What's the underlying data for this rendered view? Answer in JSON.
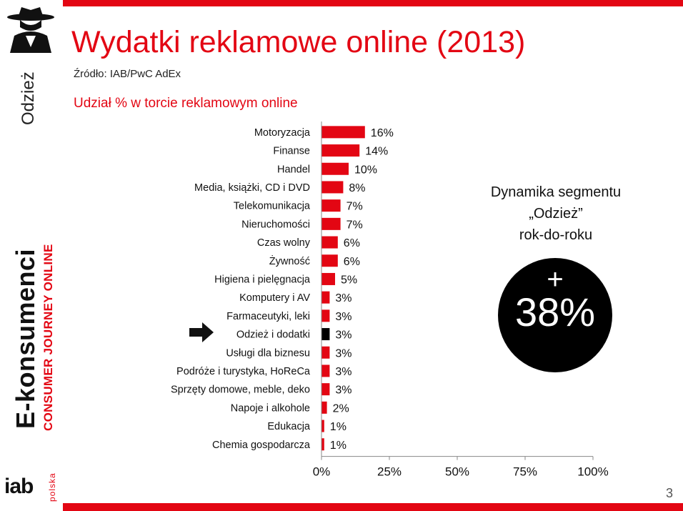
{
  "slide": {
    "title": "Wydatki reklamowe online (2013)",
    "source": "Źródło: IAB/PwC AdEx",
    "subtitle": "Udział % w torcie reklamowym online",
    "page_number": "3"
  },
  "sidebar": {
    "section": "Odzież",
    "brand": "E-konsumenci",
    "subbrand": "CONSUMER JOURNEY ONLINE",
    "logo": "iab",
    "logo_sub": "polska",
    "icon": "spy-icon"
  },
  "callout": {
    "line1": "Dynamika segmentu",
    "line2": "„Odzież”",
    "line3": "rok-do-roku",
    "sign": "+",
    "value": "38%"
  },
  "colors": {
    "accent": "#e30613",
    "highlight": "#000000"
  },
  "chart_data": {
    "type": "bar",
    "orientation": "horizontal",
    "categories": [
      "Motoryzacja",
      "Finanse",
      "Handel",
      "Media, książki, CD i DVD",
      "Telekomunikacja",
      "Nieruchomości",
      "Czas wolny",
      "Żywność",
      "Higiena i pielęgnacja",
      "Komputery i AV",
      "Farmaceutyki, leki",
      "Odzież i dodatki",
      "Usługi dla biznesu",
      "Podróże i turystyka, HoReCa",
      "Sprzęty domowe, meble, deko",
      "Napoje i alkohole",
      "Edukacja",
      "Chemia gospodarcza"
    ],
    "values": [
      16,
      14,
      10,
      8,
      7,
      7,
      6,
      6,
      5,
      3,
      3,
      3,
      3,
      3,
      3,
      2,
      1,
      1
    ],
    "labels": [
      "16%",
      "14%",
      "10%",
      "8%",
      "7%",
      "7%",
      "6%",
      "6%",
      "5%",
      "3%",
      "3%",
      "3%",
      "3%",
      "3%",
      "3%",
      "2%",
      "1%",
      "1%"
    ],
    "highlight_index": 11,
    "xlim": [
      0,
      100
    ],
    "xticks": [
      "0%",
      "25%",
      "50%",
      "75%",
      "100%"
    ]
  }
}
